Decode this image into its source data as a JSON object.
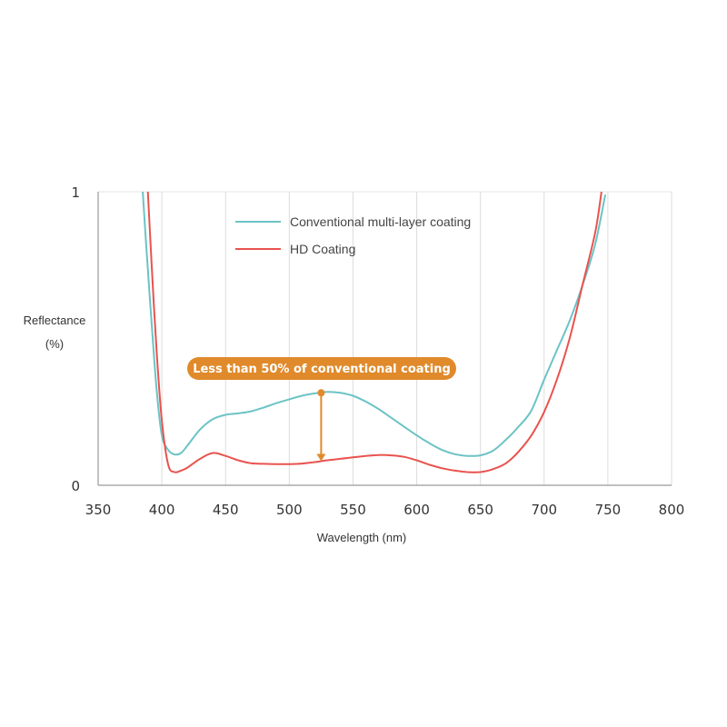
{
  "chart_data": {
    "type": "line",
    "xlabel": "Wavelength (nm)",
    "ylabel_line1": "Reflectance",
    "ylabel_line2": "(%)",
    "xlim": [
      350,
      800
    ],
    "ylim": [
      0,
      1
    ],
    "x_ticks": [
      "350",
      "400",
      "450",
      "500",
      "550",
      "600",
      "650",
      "700",
      "750",
      "800"
    ],
    "y_ticks": [
      "0",
      "1"
    ],
    "grid": "vertical",
    "legend_position": "top-left",
    "series": [
      {
        "name": "Conventional multi-layer coating",
        "color": "#6cc3c5",
        "x": [
          385,
          388,
          392,
          396,
          400,
          405,
          410,
          415,
          420,
          430,
          440,
          450,
          460,
          470,
          480,
          490,
          500,
          510,
          520,
          530,
          540,
          550,
          560,
          570,
          580,
          590,
          600,
          610,
          620,
          630,
          640,
          650,
          660,
          670,
          680,
          690,
          700,
          710,
          720,
          730,
          740,
          748
        ],
        "y": [
          1.0,
          0.8,
          0.55,
          0.32,
          0.17,
          0.12,
          0.105,
          0.11,
          0.135,
          0.19,
          0.225,
          0.24,
          0.245,
          0.252,
          0.265,
          0.28,
          0.293,
          0.305,
          0.313,
          0.318,
          0.315,
          0.305,
          0.285,
          0.26,
          0.23,
          0.2,
          0.17,
          0.143,
          0.12,
          0.106,
          0.1,
          0.102,
          0.118,
          0.155,
          0.2,
          0.255,
          0.36,
          0.46,
          0.56,
          0.68,
          0.82,
          0.99
        ]
      },
      {
        "name": "HD Coating",
        "color": "#e8534f",
        "x": [
          389,
          392,
          396,
          400,
          405,
          410,
          415,
          420,
          430,
          440,
          450,
          460,
          470,
          480,
          490,
          500,
          510,
          520,
          530,
          540,
          550,
          560,
          570,
          580,
          590,
          600,
          610,
          620,
          630,
          640,
          650,
          660,
          670,
          680,
          690,
          700,
          710,
          720,
          730,
          740,
          745
        ],
        "y": [
          1.0,
          0.75,
          0.45,
          0.22,
          0.07,
          0.045,
          0.05,
          0.06,
          0.09,
          0.11,
          0.1,
          0.085,
          0.075,
          0.073,
          0.072,
          0.072,
          0.074,
          0.079,
          0.085,
          0.09,
          0.095,
          0.1,
          0.103,
          0.102,
          0.097,
          0.085,
          0.07,
          0.058,
          0.05,
          0.045,
          0.045,
          0.055,
          0.075,
          0.115,
          0.17,
          0.25,
          0.36,
          0.5,
          0.68,
          0.86,
          1.0
        ]
      }
    ],
    "annotation": {
      "text": "Less than 50% of conventional coating",
      "color": "#e08a2b",
      "x": 525,
      "y_top": 0.315,
      "y_bottom": 0.082
    }
  }
}
